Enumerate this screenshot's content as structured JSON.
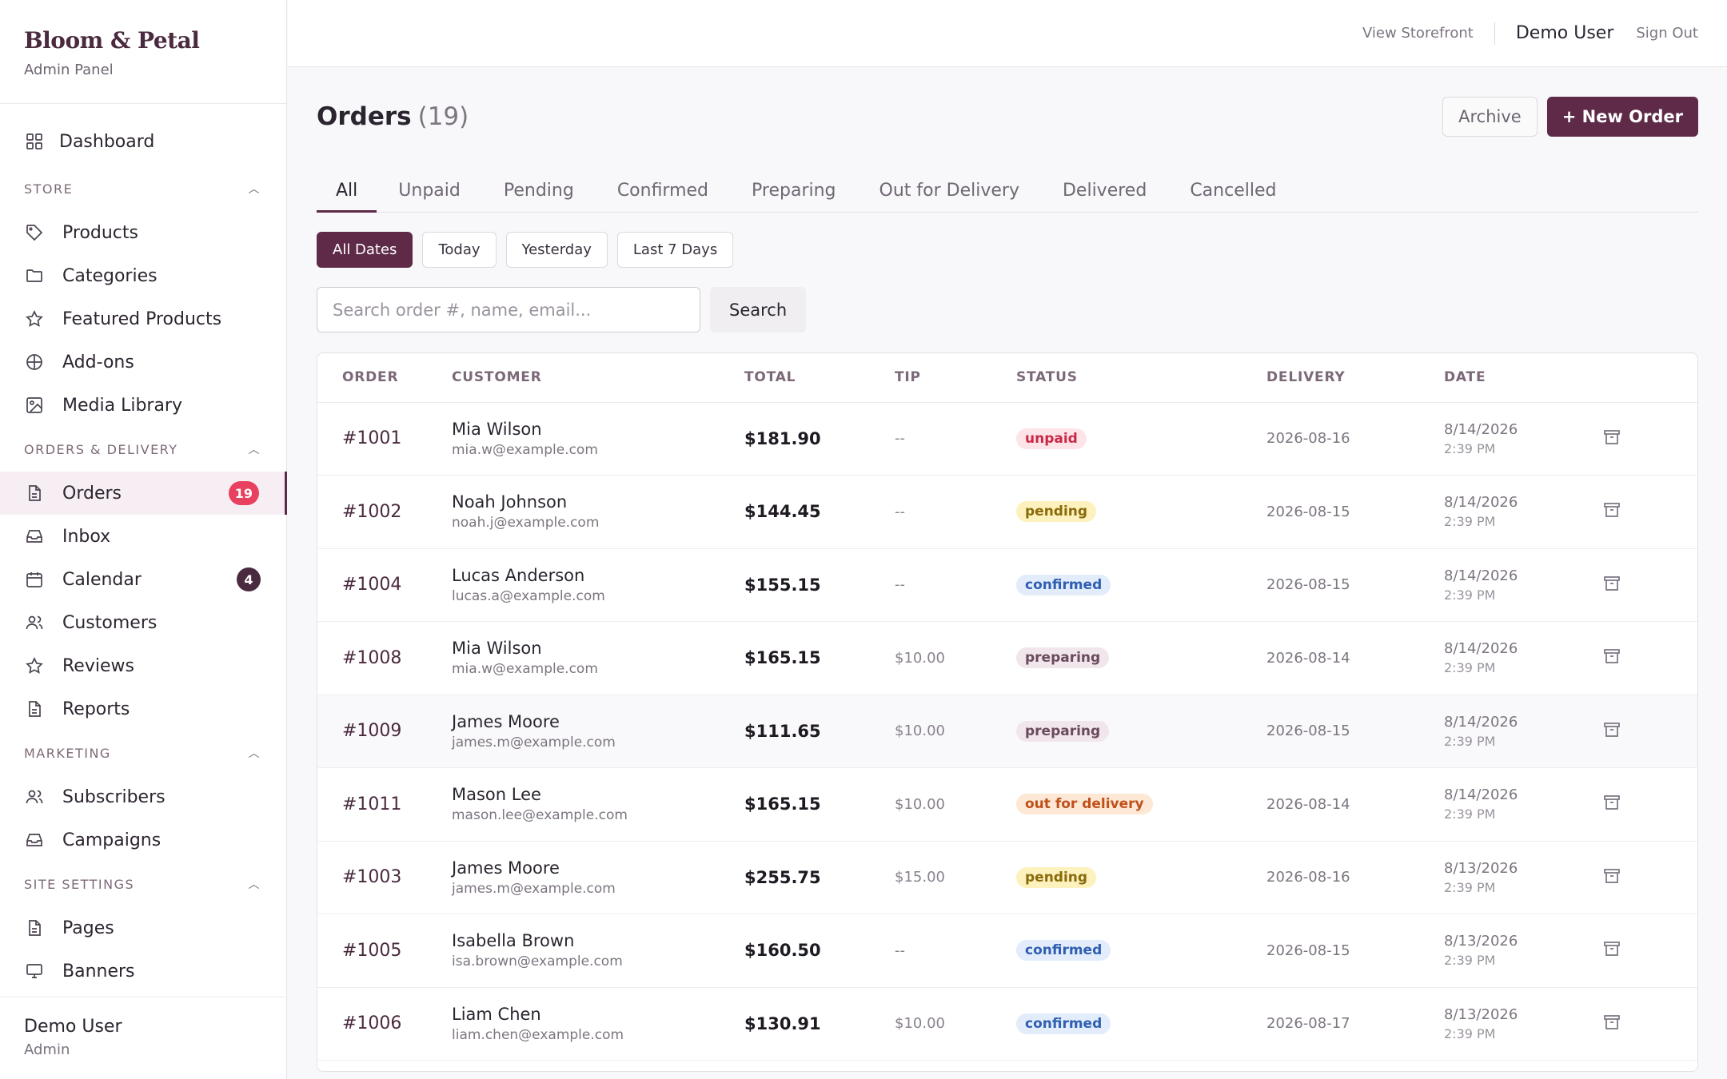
{
  "brand": {
    "name": "Bloom & Petal",
    "subtitle": "Admin Panel"
  },
  "sidebar": {
    "dashboard": {
      "label": "Dashboard",
      "icon": "grid-icon"
    },
    "sections": [
      {
        "title": "STORE",
        "items": [
          {
            "label": "Products",
            "icon": "tag-icon"
          },
          {
            "label": "Categories",
            "icon": "folder-icon"
          },
          {
            "label": "Featured Products",
            "icon": "star-icon"
          },
          {
            "label": "Add-ons",
            "icon": "circle-plus-icon"
          },
          {
            "label": "Media Library",
            "icon": "image-icon"
          }
        ]
      },
      {
        "title": "ORDERS & DELIVERY",
        "items": [
          {
            "label": "Orders",
            "icon": "document-icon",
            "badge": "19",
            "active": true
          },
          {
            "label": "Inbox",
            "icon": "inbox-icon"
          },
          {
            "label": "Calendar",
            "icon": "calendar-icon",
            "badge": "4"
          },
          {
            "label": "Customers",
            "icon": "users-icon"
          },
          {
            "label": "Reviews",
            "icon": "star-icon"
          },
          {
            "label": "Reports",
            "icon": "document-icon"
          }
        ]
      },
      {
        "title": "MARKETING",
        "items": [
          {
            "label": "Subscribers",
            "icon": "users-icon"
          },
          {
            "label": "Campaigns",
            "icon": "inbox-icon"
          }
        ]
      },
      {
        "title": "SITE SETTINGS",
        "items": [
          {
            "label": "Pages",
            "icon": "document-icon"
          },
          {
            "label": "Banners",
            "icon": "monitor-icon"
          }
        ]
      }
    ],
    "footer": {
      "user": "Demo User",
      "role": "Admin"
    }
  },
  "topbar": {
    "storefront": "View Storefront",
    "user": "Demo User",
    "signout": "Sign Out"
  },
  "page": {
    "title": "Orders",
    "count": "(19)",
    "archive_label": "Archive",
    "new_label": "+ New Order"
  },
  "tabs": [
    "All",
    "Unpaid",
    "Pending",
    "Confirmed",
    "Preparing",
    "Out for Delivery",
    "Delivered",
    "Cancelled"
  ],
  "date_filters": [
    "All Dates",
    "Today",
    "Yesterday",
    "Last 7 Days"
  ],
  "search": {
    "placeholder": "Search order #, name, email...",
    "button": "Search"
  },
  "table": {
    "headers": [
      "ORDER",
      "CUSTOMER",
      "TOTAL",
      "TIP",
      "STATUS",
      "DELIVERY",
      "DATE"
    ],
    "rows": [
      {
        "order": "#1001",
        "name": "Mia Wilson",
        "email": "mia.w@example.com",
        "total": "$181.90",
        "tip": "--",
        "status": "unpaid",
        "delivery": "2026-08-16",
        "date": "8/14/2026",
        "time": "2:39 PM"
      },
      {
        "order": "#1002",
        "name": "Noah Johnson",
        "email": "noah.j@example.com",
        "total": "$144.45",
        "tip": "--",
        "status": "pending",
        "delivery": "2026-08-15",
        "date": "8/14/2026",
        "time": "2:39 PM"
      },
      {
        "order": "#1004",
        "name": "Lucas Anderson",
        "email": "lucas.a@example.com",
        "total": "$155.15",
        "tip": "--",
        "status": "confirmed",
        "delivery": "2026-08-15",
        "date": "8/14/2026",
        "time": "2:39 PM"
      },
      {
        "order": "#1008",
        "name": "Mia Wilson",
        "email": "mia.w@example.com",
        "total": "$165.15",
        "tip": "$10.00",
        "status": "preparing",
        "delivery": "2026-08-14",
        "date": "8/14/2026",
        "time": "2:39 PM"
      },
      {
        "order": "#1009",
        "name": "James Moore",
        "email": "james.m@example.com",
        "total": "$111.65",
        "tip": "$10.00",
        "status": "preparing",
        "delivery": "2026-08-15",
        "date": "8/14/2026",
        "time": "2:39 PM"
      },
      {
        "order": "#1011",
        "name": "Mason Lee",
        "email": "mason.lee@example.com",
        "total": "$165.15",
        "tip": "$10.00",
        "status": "out for delivery",
        "delivery": "2026-08-14",
        "date": "8/14/2026",
        "time": "2:39 PM"
      },
      {
        "order": "#1003",
        "name": "James Moore",
        "email": "james.m@example.com",
        "total": "$255.75",
        "tip": "$15.00",
        "status": "pending",
        "delivery": "2026-08-16",
        "date": "8/13/2026",
        "time": "2:39 PM"
      },
      {
        "order": "#1005",
        "name": "Isabella Brown",
        "email": "isa.brown@example.com",
        "total": "$160.50",
        "tip": "--",
        "status": "confirmed",
        "delivery": "2026-08-15",
        "date": "8/13/2026",
        "time": "2:39 PM"
      },
      {
        "order": "#1006",
        "name": "Liam Chen",
        "email": "liam.chen@example.com",
        "total": "$130.91",
        "tip": "$10.00",
        "status": "confirmed",
        "delivery": "2026-08-17",
        "date": "8/13/2026",
        "time": "2:39 PM"
      }
    ]
  },
  "colors": {
    "brand": "#5e2a48",
    "badge_red": "#e8405f"
  }
}
